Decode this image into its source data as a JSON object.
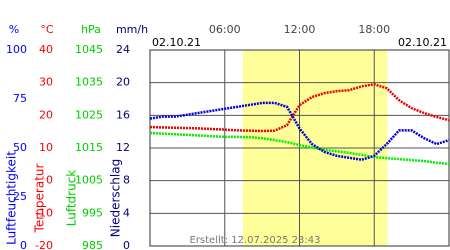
{
  "chart_data": {
    "type": "line",
    "x_start_label": "02.10.21",
    "x_end_label": "02.10.21",
    "xlim": [
      0,
      24
    ],
    "xticks": [
      {
        "value": 6,
        "label": "06:00"
      },
      {
        "value": 12,
        "label": "12:00"
      },
      {
        "value": 18,
        "label": "18:00"
      }
    ],
    "daylight": [
      7.45,
      19.05
    ],
    "daylight_color": "#ffff99",
    "grid": true,
    "footer": "Erstellt: 12.07.2025 23:43",
    "axes": [
      {
        "unit": "%",
        "title": "Luftfeuchtigkeit",
        "color": "#0000ff",
        "lim": [
          0,
          100
        ],
        "ticks": [
          0,
          25,
          50,
          75,
          100
        ]
      },
      {
        "unit": "°C",
        "title": "Temperatur",
        "color": "#ff0000",
        "lim": [
          -20,
          40
        ],
        "ticks": [
          -20,
          -10,
          0,
          10,
          20,
          30,
          40
        ]
      },
      {
        "unit": "hPa",
        "title": "Luftdruck",
        "color": "#00cc00",
        "lim": [
          985,
          1045
        ],
        "ticks": [
          985,
          995,
          1005,
          1015,
          1025,
          1035,
          1045
        ]
      },
      {
        "unit": "mm/h",
        "title": "Niederschlag",
        "color": "#000080",
        "lim": [
          0,
          24
        ],
        "ticks": [
          0,
          4,
          8,
          12,
          16,
          20,
          24
        ]
      }
    ],
    "x": [
      0,
      1,
      2,
      3,
      4,
      5,
      6,
      7,
      8,
      9,
      10,
      11,
      12,
      13,
      14,
      15,
      16,
      17,
      18,
      19,
      20,
      21,
      22,
      23,
      24
    ],
    "series": [
      {
        "axis": 2,
        "color": "#00ee00",
        "values": [
          1019.6,
          1019.4,
          1019.2,
          1019.0,
          1018.8,
          1018.6,
          1018.4,
          1018.4,
          1018.3,
          1018.0,
          1017.4,
          1016.8,
          1015.9,
          1015.2,
          1014.4,
          1014.0,
          1013.5,
          1012.9,
          1012.2,
          1011.9,
          1011.6,
          1011.3,
          1011.0,
          1010.5,
          1010.1
        ]
      },
      {
        "axis": 1,
        "color": "#ee0000",
        "values": [
          16.4,
          16.3,
          16.2,
          16.1,
          16.0,
          15.8,
          15.6,
          15.4,
          15.3,
          15.2,
          15.3,
          17.0,
          23.1,
          25.6,
          26.8,
          27.4,
          27.7,
          28.9,
          29.5,
          28.3,
          24.6,
          22.2,
          20.7,
          19.5,
          18.5
        ]
      },
      {
        "axis": 0,
        "color": "#0000dd",
        "values": [
          65,
          66,
          66,
          67,
          68,
          69,
          70,
          71,
          72,
          73,
          73,
          71,
          60,
          52,
          48,
          46,
          45,
          44,
          46,
          52,
          59,
          59,
          55,
          52,
          54
        ]
      }
    ]
  }
}
